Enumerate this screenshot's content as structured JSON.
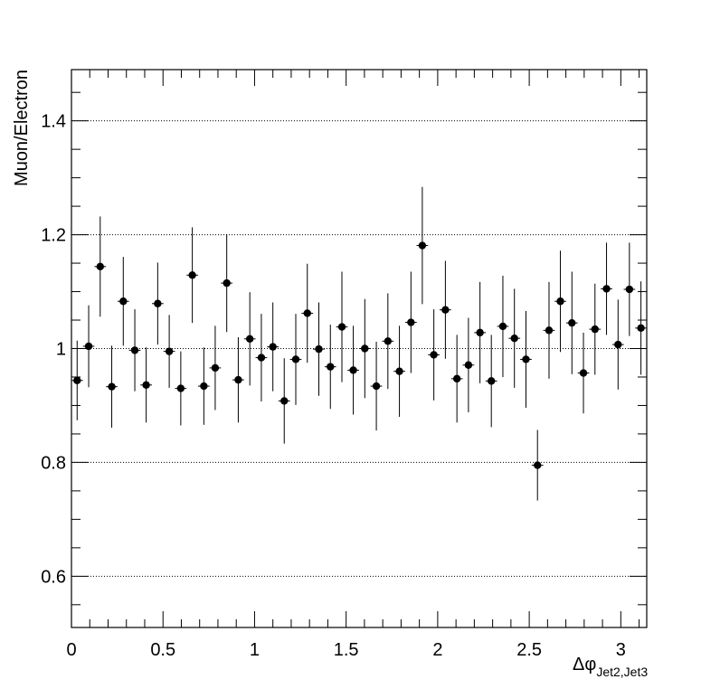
{
  "chart_data": {
    "type": "scatter",
    "title": "",
    "xlabel": "Δφ",
    "xlabel_subscript": "Jet2,Jet3",
    "ylabel": "Muon/Electron",
    "xlim": [
      0,
      3.1416
    ],
    "ylim": [
      0.51,
      1.49
    ],
    "x_ticks": [
      0,
      0.5,
      1,
      1.5,
      2,
      2.5,
      3
    ],
    "x_tick_labels": [
      "0",
      "0.5",
      "1",
      "1.5",
      "2",
      "2.5",
      "3"
    ],
    "y_ticks": [
      0.6,
      0.8,
      1.0,
      1.2,
      1.4
    ],
    "y_tick_labels": [
      "0.6",
      "0.8",
      "1",
      "1.2",
      "1.4"
    ],
    "grid": {
      "x": false,
      "y": true,
      "style": "dotted"
    },
    "legend": "none",
    "marker_color": "#000000",
    "bin_half_width": 0.0314,
    "series": [
      {
        "x": [
          0.031,
          0.094,
          0.157,
          0.22,
          0.283,
          0.346,
          0.408,
          0.471,
          0.534,
          0.597,
          0.66,
          0.723,
          0.785,
          0.848,
          0.911,
          0.974,
          1.037,
          1.1,
          1.162,
          1.225,
          1.288,
          1.351,
          1.414,
          1.477,
          1.539,
          1.602,
          1.665,
          1.728,
          1.791,
          1.854,
          1.916,
          1.979,
          2.042,
          2.105,
          2.168,
          2.231,
          2.293,
          2.356,
          2.419,
          2.482,
          2.545,
          2.608,
          2.67,
          2.733,
          2.796,
          2.859,
          2.922,
          2.985,
          3.047,
          3.11
        ],
        "y": [
          0.944,
          1.004,
          1.144,
          0.933,
          1.083,
          0.997,
          0.936,
          1.079,
          0.995,
          0.93,
          1.129,
          0.934,
          0.966,
          1.115,
          0.945,
          1.017,
          0.984,
          1.003,
          0.908,
          0.981,
          1.062,
          0.999,
          0.968,
          1.038,
          0.962,
          1.0,
          0.934,
          1.013,
          0.96,
          1.046,
          1.181,
          0.989,
          1.068,
          0.947,
          0.971,
          1.028,
          0.943,
          1.039,
          1.018,
          0.981,
          0.795,
          1.032,
          1.083,
          1.045,
          0.957,
          1.034,
          1.105,
          1.007,
          1.104,
          1.036
        ],
        "yerr": [
          0.07,
          0.072,
          0.088,
          0.072,
          0.078,
          0.072,
          0.066,
          0.072,
          0.064,
          0.065,
          0.084,
          0.068,
          0.074,
          0.086,
          0.075,
          0.082,
          0.077,
          0.078,
          0.075,
          0.08,
          0.087,
          0.082,
          0.074,
          0.097,
          0.078,
          0.087,
          0.078,
          0.084,
          0.08,
          0.089,
          0.103,
          0.08,
          0.086,
          0.077,
          0.083,
          0.089,
          0.081,
          0.089,
          0.087,
          0.085,
          0.062,
          0.085,
          0.089,
          0.09,
          0.071,
          0.08,
          0.081,
          0.079,
          0.082,
          0.082
        ]
      }
    ]
  }
}
